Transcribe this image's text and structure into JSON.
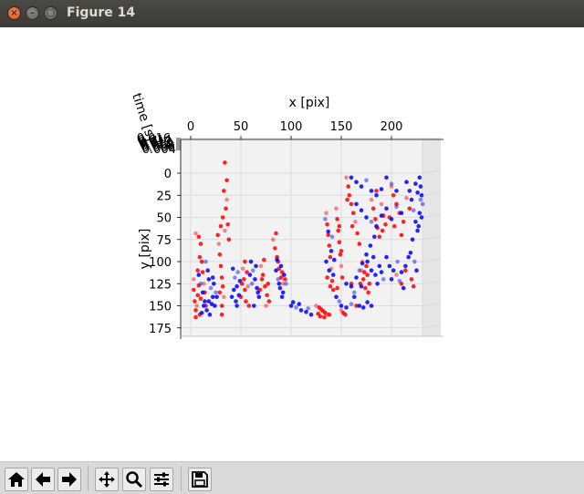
{
  "window": {
    "title": "Figure 14",
    "close_glyph": "×",
    "min_glyph": "–",
    "max_glyph": "□"
  },
  "toolbar": {
    "buttons": [
      {
        "name": "home-icon"
      },
      {
        "name": "back-arrow-icon"
      },
      {
        "name": "forward-arrow-icon"
      },
      {
        "name": "pan-icon"
      },
      {
        "name": "zoom-icon"
      },
      {
        "name": "configure-subplots-icon"
      },
      {
        "name": "save-icon"
      }
    ]
  },
  "chart_data": {
    "type": "scatter",
    "projection": "3d, viewed from the time axis",
    "xlabel": "x [pix]",
    "ylabel": "y [pix]",
    "zlabel": "time [s]",
    "x_ticks": [
      "0",
      "50",
      "100",
      "150",
      "200"
    ],
    "y_ticks": [
      "0",
      "25",
      "50",
      "75",
      "100",
      "125",
      "150",
      "175"
    ],
    "z_ticks": [
      "0.004",
      "0.006",
      "0.008",
      "0.010",
      "0.012",
      "0.014",
      "0.016"
    ],
    "xlim": [
      -10,
      245
    ],
    "ylim": [
      -10,
      180
    ],
    "grid": true,
    "colors": {
      "series_a": "#ff0000",
      "series_b": "#0000ff",
      "pane": "#f2f2f2",
      "grid": "#d6d6d6",
      "axis": "#000000"
    },
    "series": [
      {
        "color": "#ff0000",
        "points": [
          [
            3,
            120
          ],
          [
            3,
            132
          ],
          [
            4,
            145
          ],
          [
            5,
            155
          ],
          [
            5,
            163
          ],
          [
            6,
            150
          ],
          [
            7,
            138
          ],
          [
            8,
            127
          ],
          [
            9,
            160
          ],
          [
            10,
            142
          ],
          [
            5,
            68
          ],
          [
            8,
            72
          ],
          [
            10,
            80
          ],
          [
            11,
            100
          ],
          [
            12,
            112
          ],
          [
            13,
            125
          ],
          [
            14,
            135
          ],
          [
            15,
            150
          ],
          [
            7,
            110
          ],
          [
            9,
            95
          ],
          [
            28,
            80
          ],
          [
            29,
            92
          ],
          [
            30,
            105
          ],
          [
            31,
            118
          ],
          [
            32,
            128
          ],
          [
            33,
            140
          ],
          [
            31,
            150
          ],
          [
            27,
            70
          ],
          [
            30,
            60
          ],
          [
            32,
            50
          ],
          [
            34,
            65
          ],
          [
            35,
            40
          ],
          [
            34,
            -12
          ],
          [
            36,
            8
          ],
          [
            33,
            20
          ],
          [
            36,
            30
          ],
          [
            37,
            58
          ],
          [
            38,
            75
          ],
          [
            29,
            135
          ],
          [
            31,
            160
          ],
          [
            52,
            108
          ],
          [
            53,
            120
          ],
          [
            54,
            132
          ],
          [
            55,
            145
          ],
          [
            56,
            112
          ],
          [
            57,
            128
          ],
          [
            50,
            140
          ],
          [
            58,
            150
          ],
          [
            54,
            100
          ],
          [
            51,
            125
          ],
          [
            70,
            105
          ],
          [
            72,
            115
          ],
          [
            74,
            128
          ],
          [
            76,
            138
          ],
          [
            78,
            145
          ],
          [
            75,
            150
          ],
          [
            73,
            98
          ],
          [
            71,
            120
          ],
          [
            69,
            132
          ],
          [
            77,
            125
          ],
          [
            82,
            75
          ],
          [
            84,
            85
          ],
          [
            86,
            95
          ],
          [
            88,
            108
          ],
          [
            90,
            118
          ],
          [
            92,
            125
          ],
          [
            85,
            68
          ],
          [
            87,
            100
          ],
          [
            91,
            112
          ],
          [
            94,
            120
          ],
          [
            125,
            150
          ],
          [
            128,
            152
          ],
          [
            130,
            154
          ],
          [
            132,
            156
          ],
          [
            134,
            158
          ],
          [
            136,
            160
          ],
          [
            138,
            160
          ],
          [
            129,
            162
          ],
          [
            133,
            163
          ],
          [
            127,
            159
          ],
          [
            135,
            45
          ],
          [
            136,
            58
          ],
          [
            137,
            70
          ],
          [
            138,
            82
          ],
          [
            139,
            95
          ],
          [
            140,
            108
          ],
          [
            141,
            122
          ],
          [
            142,
            132
          ],
          [
            136,
            118
          ],
          [
            139,
            128
          ],
          [
            145,
            40
          ],
          [
            146,
            52
          ],
          [
            147,
            65
          ],
          [
            148,
            78
          ],
          [
            149,
            92
          ],
          [
            150,
            105
          ],
          [
            151,
            118
          ],
          [
            146,
            130
          ],
          [
            150,
            88
          ],
          [
            148,
            60
          ],
          [
            155,
            5
          ],
          [
            157,
            15
          ],
          [
            158,
            25
          ],
          [
            160,
            35
          ],
          [
            162,
            45
          ],
          [
            164,
            55
          ],
          [
            166,
            68
          ],
          [
            168,
            80
          ],
          [
            156,
            30
          ],
          [
            161,
            60
          ],
          [
            170,
            110
          ],
          [
            172,
            120
          ],
          [
            174,
            130
          ],
          [
            176,
            115
          ],
          [
            178,
            125
          ],
          [
            171,
            100
          ],
          [
            175,
            105
          ],
          [
            177,
            135
          ],
          [
            173,
            112
          ],
          [
            169,
            125
          ],
          [
            180,
            30
          ],
          [
            182,
            40
          ],
          [
            184,
            52
          ],
          [
            186,
            62
          ],
          [
            188,
            72
          ],
          [
            190,
            35
          ],
          [
            192,
            48
          ],
          [
            194,
            58
          ],
          [
            185,
            20
          ],
          [
            191,
            65
          ],
          [
            200,
            15
          ],
          [
            202,
            25
          ],
          [
            205,
            35
          ],
          [
            208,
            45
          ],
          [
            212,
            55
          ],
          [
            215,
            28
          ],
          [
            218,
            40
          ],
          [
            203,
            60
          ],
          [
            210,
            70
          ],
          [
            198,
            50
          ],
          [
            150,
            155
          ],
          [
            152,
            158
          ],
          [
            154,
            160
          ],
          [
            220,
            120
          ],
          [
            222,
            128
          ],
          [
            205,
            115
          ],
          [
            210,
            125
          ],
          [
            214,
            110
          ],
          [
            165,
            150
          ],
          [
            160,
            125
          ]
        ]
      },
      {
        "color": "#0000ff",
        "points": [
          [
            8,
            115
          ],
          [
            10,
            125
          ],
          [
            12,
            135
          ],
          [
            14,
            145
          ],
          [
            16,
            155
          ],
          [
            18,
            120
          ],
          [
            20,
            130
          ],
          [
            22,
            140
          ],
          [
            24,
            150
          ],
          [
            17,
            110
          ],
          [
            21,
            148
          ],
          [
            25,
            135
          ],
          [
            19,
            160
          ],
          [
            23,
            125
          ],
          [
            13,
            150
          ],
          [
            26,
            140
          ],
          [
            15,
            100
          ],
          [
            11,
            158
          ],
          [
            22,
            118
          ],
          [
            18,
            145
          ],
          [
            42,
            108
          ],
          [
            44,
            118
          ],
          [
            46,
            128
          ],
          [
            48,
            138
          ],
          [
            45,
            145
          ],
          [
            43,
            132
          ],
          [
            47,
            112
          ],
          [
            49,
            122
          ],
          [
            41,
            140
          ],
          [
            46,
            150
          ],
          [
            60,
            100
          ],
          [
            62,
            110
          ],
          [
            64,
            120
          ],
          [
            66,
            130
          ],
          [
            68,
            140
          ],
          [
            63,
            150
          ],
          [
            61,
            125
          ],
          [
            65,
            105
          ],
          [
            67,
            135
          ],
          [
            59,
            115
          ],
          [
            85,
            110
          ],
          [
            87,
            120
          ],
          [
            89,
            130
          ],
          [
            91,
            140
          ],
          [
            93,
            115
          ],
          [
            90,
            105
          ],
          [
            95,
            125
          ],
          [
            92,
            135
          ],
          [
            86,
            98
          ],
          [
            88,
            125
          ],
          [
            100,
            150
          ],
          [
            105,
            152
          ],
          [
            110,
            155
          ],
          [
            115,
            157
          ],
          [
            120,
            160
          ],
          [
            108,
            148
          ],
          [
            117,
            153
          ],
          [
            102,
            146
          ],
          [
            145,
            140
          ],
          [
            150,
            150
          ],
          [
            155,
            152
          ],
          [
            160,
            148
          ],
          [
            168,
            150
          ],
          [
            172,
            152
          ],
          [
            176,
            146
          ],
          [
            180,
            150
          ],
          [
            148,
            145
          ],
          [
            163,
            140
          ],
          [
            155,
            125
          ],
          [
            160,
            128
          ],
          [
            165,
            118
          ],
          [
            168,
            110
          ],
          [
            171,
            102
          ],
          [
            175,
            92
          ],
          [
            179,
            82
          ],
          [
            183,
            72
          ],
          [
            163,
            135
          ],
          [
            170,
            128
          ],
          [
            160,
            5
          ],
          [
            165,
            10
          ],
          [
            170,
            15
          ],
          [
            175,
            8
          ],
          [
            180,
            20
          ],
          [
            185,
            25
          ],
          [
            190,
            18
          ],
          [
            195,
            5
          ],
          [
            200,
            12
          ],
          [
            205,
            20
          ],
          [
            165,
            35
          ],
          [
            170,
            42
          ],
          [
            175,
            50
          ],
          [
            180,
            55
          ],
          [
            185,
            60
          ],
          [
            190,
            48
          ],
          [
            195,
            40
          ],
          [
            200,
            52
          ],
          [
            205,
            38
          ],
          [
            210,
            45
          ],
          [
            215,
            10
          ],
          [
            218,
            20
          ],
          [
            220,
            30
          ],
          [
            222,
            42
          ],
          [
            224,
            55
          ],
          [
            226,
            65
          ],
          [
            221,
            75
          ],
          [
            219,
            90
          ],
          [
            223,
            100
          ],
          [
            225,
            110
          ],
          [
            195,
            95
          ],
          [
            198,
            105
          ],
          [
            202,
            110
          ],
          [
            206,
            100
          ],
          [
            210,
            112
          ],
          [
            214,
            105
          ],
          [
            217,
            95
          ],
          [
            200,
            120
          ],
          [
            208,
            122
          ],
          [
            212,
            130
          ],
          [
            228,
            5
          ],
          [
            229,
            15
          ],
          [
            230,
            25
          ],
          [
            231,
            35
          ],
          [
            228,
            45
          ],
          [
            226,
            22
          ],
          [
            224,
            12
          ],
          [
            227,
            60
          ],
          [
            229,
            30
          ],
          [
            230,
            50
          ],
          [
            180,
            110
          ],
          [
            184,
            115
          ],
          [
            188,
            105
          ],
          [
            192,
            120
          ],
          [
            176,
            100
          ],
          [
            186,
            125
          ],
          [
            182,
            95
          ],
          [
            190,
            112
          ],
          [
            134,
            52
          ],
          [
            137,
            66
          ],
          [
            140,
            88
          ],
          [
            143,
            98
          ],
          [
            138,
            110
          ],
          [
            141,
            72
          ],
          [
            135,
            100
          ],
          [
            142,
            115
          ]
        ]
      }
    ]
  }
}
